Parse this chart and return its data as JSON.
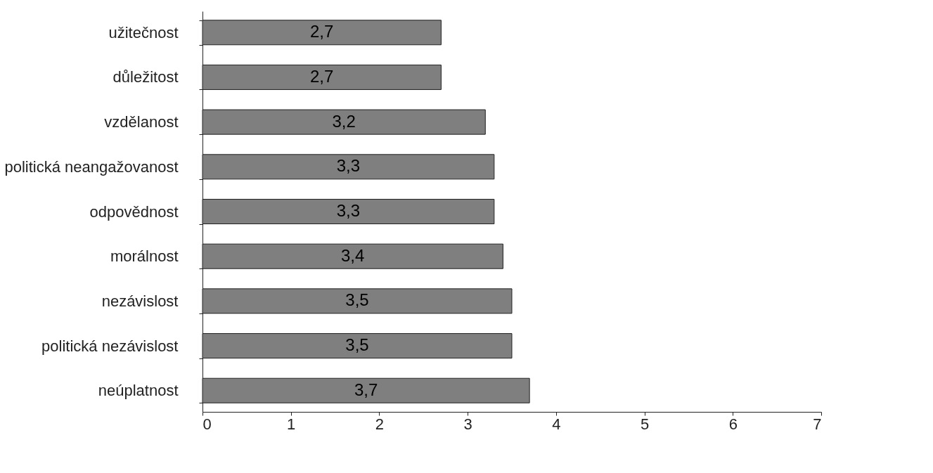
{
  "chart_data": {
    "type": "bar",
    "orientation": "horizontal",
    "categories": [
      "užitečnost",
      "důležitost",
      "vzdělanost",
      "politická neangažovanost",
      "odpovědnost",
      "morálnost",
      "nezávislost",
      "politická nezávislost",
      "neúplatnost"
    ],
    "values": [
      2.7,
      2.7,
      3.2,
      3.3,
      3.3,
      3.4,
      3.5,
      3.5,
      3.7
    ],
    "value_labels": [
      "2,7",
      "2,7",
      "3,2",
      "3,3",
      "3,3",
      "3,4",
      "3,5",
      "3,5",
      "3,7"
    ],
    "color": "#7f7f7f",
    "xlim": [
      0,
      7
    ],
    "xticks": [
      0,
      1,
      2,
      3,
      4,
      5,
      6,
      7
    ],
    "grid": false
  }
}
